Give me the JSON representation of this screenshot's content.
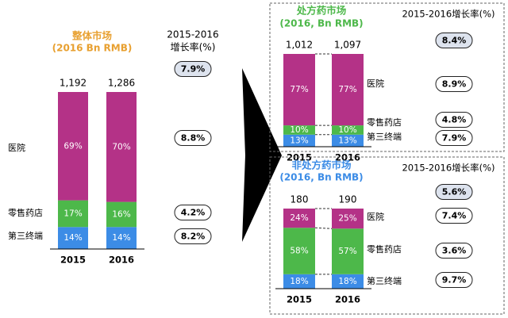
{
  "chart_data": [
    {
      "type": "bar",
      "title": "整体市场",
      "subtitle": "(2016 Bn RMB)",
      "categories": [
        "2015",
        "2016"
      ],
      "totals": [
        "1,192",
        "1,286"
      ],
      "growth_header": "2015-2016\n增长率(%)",
      "total_growth": "7.9%",
      "series": [
        {
          "name": "第三终端",
          "values": [
            14,
            14
          ],
          "labels": [
            "14%",
            "14%"
          ],
          "color": "#3c8ce6",
          "growth": "8.2%"
        },
        {
          "name": "零售药店",
          "values": [
            17,
            16
          ],
          "labels": [
            "17%",
            "16%"
          ],
          "color": "#4db84a",
          "growth": "4.2%"
        },
        {
          "name": "医院",
          "values": [
            69,
            70
          ],
          "labels": [
            "69%",
            "70%"
          ],
          "color": "#b43287",
          "growth": "8.8%"
        }
      ]
    },
    {
      "type": "bar",
      "title": "处方药市场",
      "subtitle": "(2016, Bn RMB)",
      "categories": [
        "2015",
        "2016"
      ],
      "totals": [
        "1,012",
        "1,097"
      ],
      "growth_header": "2015-2016增长率(%)",
      "total_growth": "8.4%",
      "series": [
        {
          "name": "第三终端",
          "values": [
            13,
            13
          ],
          "labels": [
            "13%",
            "13%"
          ],
          "color": "#3c8ce6",
          "growth": "7.9%"
        },
        {
          "name": "零售药店",
          "values": [
            10,
            10
          ],
          "labels": [
            "10%",
            "10%"
          ],
          "color": "#4db84a",
          "growth": "4.8%"
        },
        {
          "name": "医院",
          "values": [
            77,
            77
          ],
          "labels": [
            "77%",
            "77%"
          ],
          "color": "#b43287",
          "growth": "8.9%"
        }
      ]
    },
    {
      "type": "bar",
      "title": "非处方药市场",
      "subtitle": "(2016, Bn RMB)",
      "categories": [
        "2015",
        "2016"
      ],
      "totals": [
        "180",
        "190"
      ],
      "growth_header": "2015-2016增长率(%)",
      "total_growth": "5.6%",
      "series": [
        {
          "name": "第三终端",
          "values": [
            18,
            18
          ],
          "labels": [
            "18%",
            "18%"
          ],
          "color": "#3c8ce6",
          "growth": "9.7%"
        },
        {
          "name": "零售药店",
          "values": [
            58,
            57
          ],
          "labels": [
            "58%",
            "57%"
          ],
          "color": "#4db84a",
          "growth": "3.6%"
        },
        {
          "name": "医院",
          "values": [
            24,
            25
          ],
          "labels": [
            "24%",
            "25%"
          ],
          "color": "#b43287",
          "growth": "7.4%"
        }
      ]
    }
  ],
  "colors": {
    "title_overall": "#e8a030",
    "title_rx": "#4db84a",
    "title_otc": "#3c8ce6",
    "highlight_fill": "#dde3ee"
  }
}
